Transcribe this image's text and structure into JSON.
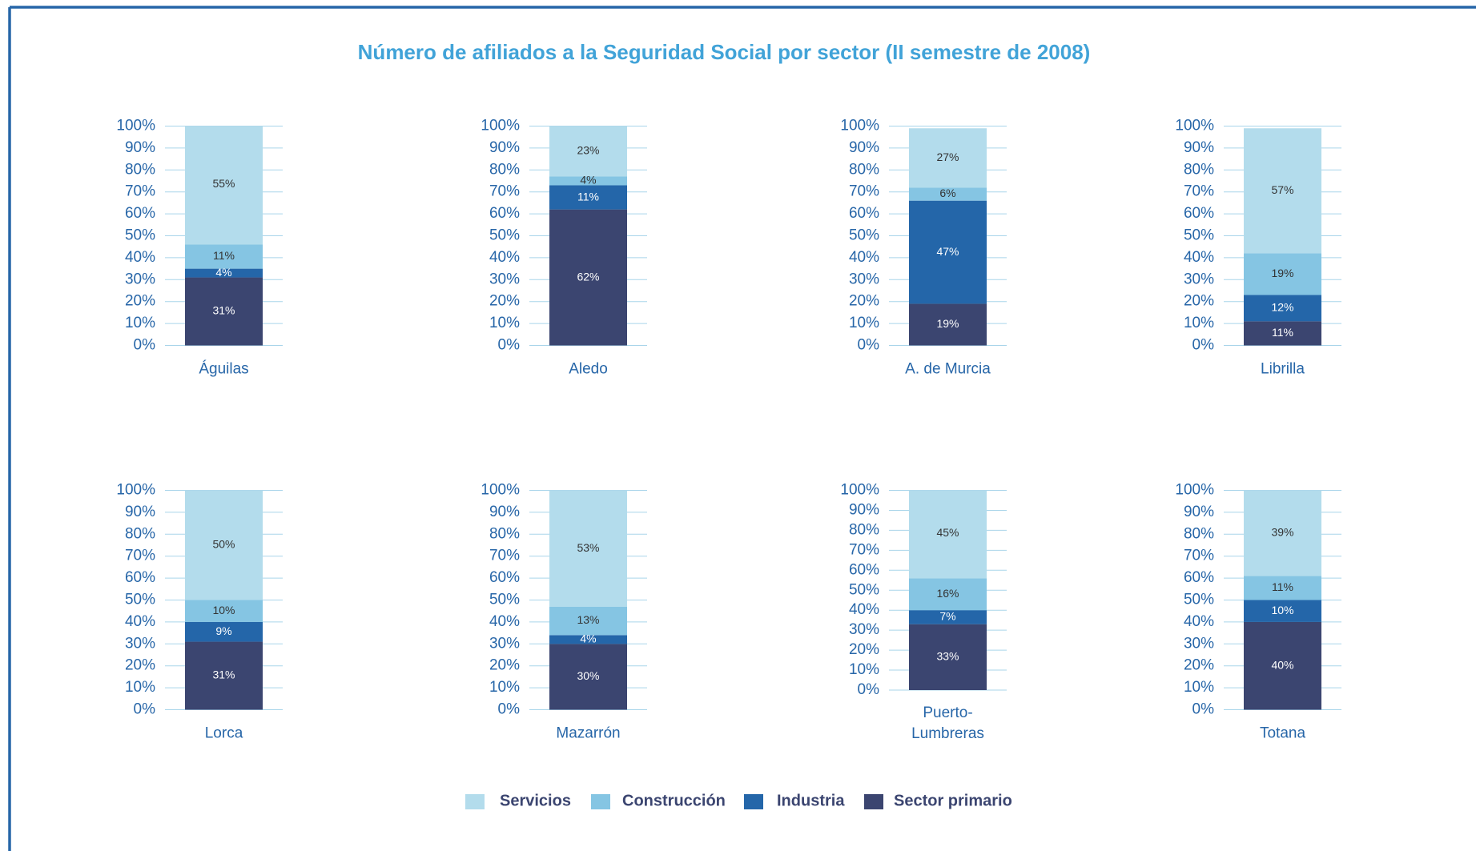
{
  "title": "Número de afiliados a la Seguridad Social por sector (II semestre de 2008)",
  "legend": [
    {
      "name": "Sector primario",
      "color": "#3b4570"
    },
    {
      "name": "Industria",
      "color": "#2466a9"
    },
    {
      "name": "Construcción",
      "color": "#85c5e3"
    },
    {
      "name": "Servicios",
      "color": "#b3dcec"
    }
  ],
  "chart_data": [
    {
      "type": "bar",
      "stacked": true,
      "categories": [
        "Águilas"
      ],
      "ylim": [
        0,
        100
      ],
      "grid": true,
      "yticks": [
        {
          "value": 0,
          "label": "0%"
        },
        {
          "value": 10,
          "label": "10%"
        },
        {
          "value": 20,
          "label": "20%"
        },
        {
          "value": 30,
          "label": "30%"
        },
        {
          "value": 40,
          "label": "40%"
        },
        {
          "value": 50,
          "label": "50%"
        },
        {
          "value": 60,
          "label": "60%"
        },
        {
          "value": 70,
          "label": "70%"
        },
        {
          "value": 80,
          "label": "80%"
        },
        {
          "value": 90,
          "label": "90%"
        },
        {
          "value": 100,
          "label": "100%"
        }
      ],
      "series": [
        {
          "values": [
            31
          ],
          "value_labels": [
            "31%"
          ]
        },
        {
          "values": [
            4
          ],
          "value_labels": [
            "4%"
          ]
        },
        {
          "values": [
            11
          ],
          "value_labels": [
            "11%"
          ]
        },
        {
          "values": [
            55
          ],
          "value_labels": [
            "55%"
          ]
        }
      ]
    },
    {
      "type": "bar",
      "stacked": true,
      "categories": [
        "Aledo"
      ],
      "ylim": [
        0,
        100
      ],
      "grid": true,
      "yticks": [
        {
          "value": 0,
          "label": "0%"
        },
        {
          "value": 10,
          "label": "10%"
        },
        {
          "value": 20,
          "label": "20%"
        },
        {
          "value": 30,
          "label": "30%"
        },
        {
          "value": 40,
          "label": "40%"
        },
        {
          "value": 50,
          "label": "50%"
        },
        {
          "value": 60,
          "label": "60%"
        },
        {
          "value": 70,
          "label": "70%"
        },
        {
          "value": 80,
          "label": "80%"
        },
        {
          "value": 90,
          "label": "90%"
        },
        {
          "value": 100,
          "label": "100%"
        }
      ],
      "series": [
        {
          "values": [
            62
          ],
          "value_labels": [
            "62%"
          ]
        },
        {
          "values": [
            11
          ],
          "value_labels": [
            "11%"
          ]
        },
        {
          "values": [
            4
          ],
          "value_labels": [
            "4%"
          ]
        },
        {
          "values": [
            23
          ],
          "value_labels": [
            "23%"
          ]
        }
      ]
    },
    {
      "type": "bar",
      "stacked": true,
      "categories": [
        "A. de Murcia"
      ],
      "ylim": [
        0,
        100
      ],
      "grid": true,
      "yticks": [
        {
          "value": 0,
          "label": "0%"
        },
        {
          "value": 10,
          "label": "10%"
        },
        {
          "value": 20,
          "label": "20%"
        },
        {
          "value": 30,
          "label": "30%"
        },
        {
          "value": 40,
          "label": "40%"
        },
        {
          "value": 50,
          "label": "50%"
        },
        {
          "value": 60,
          "label": "60%"
        },
        {
          "value": 70,
          "label": "70%"
        },
        {
          "value": 80,
          "label": "80%"
        },
        {
          "value": 90,
          "label": "90%"
        },
        {
          "value": 100,
          "label": "100%"
        }
      ],
      "series": [
        {
          "values": [
            19
          ],
          "value_labels": [
            "19%"
          ]
        },
        {
          "values": [
            47
          ],
          "value_labels": [
            "47%"
          ]
        },
        {
          "values": [
            6
          ],
          "value_labels": [
            "6%"
          ]
        },
        {
          "values": [
            27
          ],
          "value_labels": [
            "27%"
          ]
        }
      ]
    },
    {
      "type": "bar",
      "stacked": true,
      "categories": [
        "Librilla"
      ],
      "ylim": [
        0,
        100
      ],
      "grid": true,
      "yticks": [
        {
          "value": 0,
          "label": "0%"
        },
        {
          "value": 10,
          "label": "10%"
        },
        {
          "value": 20,
          "label": "20%"
        },
        {
          "value": 30,
          "label": "30%"
        },
        {
          "value": 40,
          "label": "40%"
        },
        {
          "value": 50,
          "label": "50%"
        },
        {
          "value": 60,
          "label": "60%"
        },
        {
          "value": 70,
          "label": "70%"
        },
        {
          "value": 80,
          "label": "80%"
        },
        {
          "value": 90,
          "label": "90%"
        },
        {
          "value": 100,
          "label": "100%"
        }
      ],
      "series": [
        {
          "values": [
            11
          ],
          "value_labels": [
            "11%"
          ]
        },
        {
          "values": [
            12
          ],
          "value_labels": [
            "12%"
          ]
        },
        {
          "values": [
            19
          ],
          "value_labels": [
            "19%"
          ]
        },
        {
          "values": [
            57
          ],
          "value_labels": [
            "57%"
          ]
        }
      ]
    },
    {
      "type": "bar",
      "stacked": true,
      "categories": [
        "Lorca"
      ],
      "ylim": [
        0,
        100
      ],
      "grid": true,
      "yticks": [
        {
          "value": 0,
          "label": "0%"
        },
        {
          "value": 10,
          "label": "10%"
        },
        {
          "value": 20,
          "label": "20%"
        },
        {
          "value": 30,
          "label": "30%"
        },
        {
          "value": 40,
          "label": "40%"
        },
        {
          "value": 50,
          "label": "50%"
        },
        {
          "value": 60,
          "label": "60%"
        },
        {
          "value": 70,
          "label": "70%"
        },
        {
          "value": 80,
          "label": "80%"
        },
        {
          "value": 90,
          "label": "90%"
        },
        {
          "value": 100,
          "label": "100%"
        }
      ],
      "series": [
        {
          "values": [
            31
          ],
          "value_labels": [
            "31%"
          ]
        },
        {
          "values": [
            9
          ],
          "value_labels": [
            "9%"
          ]
        },
        {
          "values": [
            10
          ],
          "value_labels": [
            "10%"
          ]
        },
        {
          "values": [
            50
          ],
          "value_labels": [
            "50%"
          ]
        }
      ]
    },
    {
      "type": "bar",
      "stacked": true,
      "categories": [
        "Mazarrón"
      ],
      "ylim": [
        0,
        100
      ],
      "grid": true,
      "yticks": [
        {
          "value": 0,
          "label": "0%"
        },
        {
          "value": 10,
          "label": "10%"
        },
        {
          "value": 20,
          "label": "20%"
        },
        {
          "value": 30,
          "label": "30%"
        },
        {
          "value": 40,
          "label": "40%"
        },
        {
          "value": 50,
          "label": "50%"
        },
        {
          "value": 60,
          "label": "60%"
        },
        {
          "value": 70,
          "label": "70%"
        },
        {
          "value": 80,
          "label": "80%"
        },
        {
          "value": 90,
          "label": "90%"
        },
        {
          "value": 100,
          "label": "100%"
        }
      ],
      "series": [
        {
          "values": [
            30
          ],
          "value_labels": [
            "30%"
          ]
        },
        {
          "values": [
            4
          ],
          "value_labels": [
            "4%"
          ]
        },
        {
          "values": [
            13
          ],
          "value_labels": [
            "13%"
          ]
        },
        {
          "values": [
            53
          ],
          "value_labels": [
            "53%"
          ]
        }
      ]
    },
    {
      "type": "bar",
      "stacked": true,
      "categories": [
        "Puerto-\nLumbreras"
      ],
      "ylim": [
        0,
        100
      ],
      "grid": true,
      "yticks": [
        {
          "value": 0,
          "label": "0%"
        },
        {
          "value": 10,
          "label": "10%"
        },
        {
          "value": 20,
          "label": "20%"
        },
        {
          "value": 30,
          "label": "30%"
        },
        {
          "value": 40,
          "label": "40%"
        },
        {
          "value": 50,
          "label": "50%"
        },
        {
          "value": 60,
          "label": "60%"
        },
        {
          "value": 70,
          "label": "70%"
        },
        {
          "value": 80,
          "label": "80%"
        },
        {
          "value": 90,
          "label": "90%"
        },
        {
          "value": 100,
          "label": "100%"
        }
      ],
      "series": [
        {
          "values": [
            33
          ],
          "value_labels": [
            "33%"
          ]
        },
        {
          "values": [
            7
          ],
          "value_labels": [
            "7%"
          ]
        },
        {
          "values": [
            16
          ],
          "value_labels": [
            "16%"
          ]
        },
        {
          "values": [
            45
          ],
          "value_labels": [
            "45%"
          ]
        }
      ]
    },
    {
      "type": "bar",
      "stacked": true,
      "categories": [
        "Totana"
      ],
      "ylim": [
        0,
        100
      ],
      "grid": true,
      "yticks": [
        {
          "value": 0,
          "label": "0%"
        },
        {
          "value": 10,
          "label": "10%"
        },
        {
          "value": 20,
          "label": "20%"
        },
        {
          "value": 30,
          "label": "30%"
        },
        {
          "value": 40,
          "label": "40%"
        },
        {
          "value": 50,
          "label": "50%"
        },
        {
          "value": 60,
          "label": "60%"
        },
        {
          "value": 70,
          "label": "70%"
        },
        {
          "value": 80,
          "label": "80%"
        },
        {
          "value": 90,
          "label": "90%"
        },
        {
          "value": 100,
          "label": "100%"
        }
      ],
      "series": [
        {
          "values": [
            40
          ],
          "value_labels": [
            "40%"
          ]
        },
        {
          "values": [
            10
          ],
          "value_labels": [
            "10%"
          ]
        },
        {
          "values": [
            11
          ],
          "value_labels": [
            "11%"
          ]
        },
        {
          "values": [
            39
          ],
          "value_labels": [
            "39%"
          ]
        }
      ]
    }
  ]
}
